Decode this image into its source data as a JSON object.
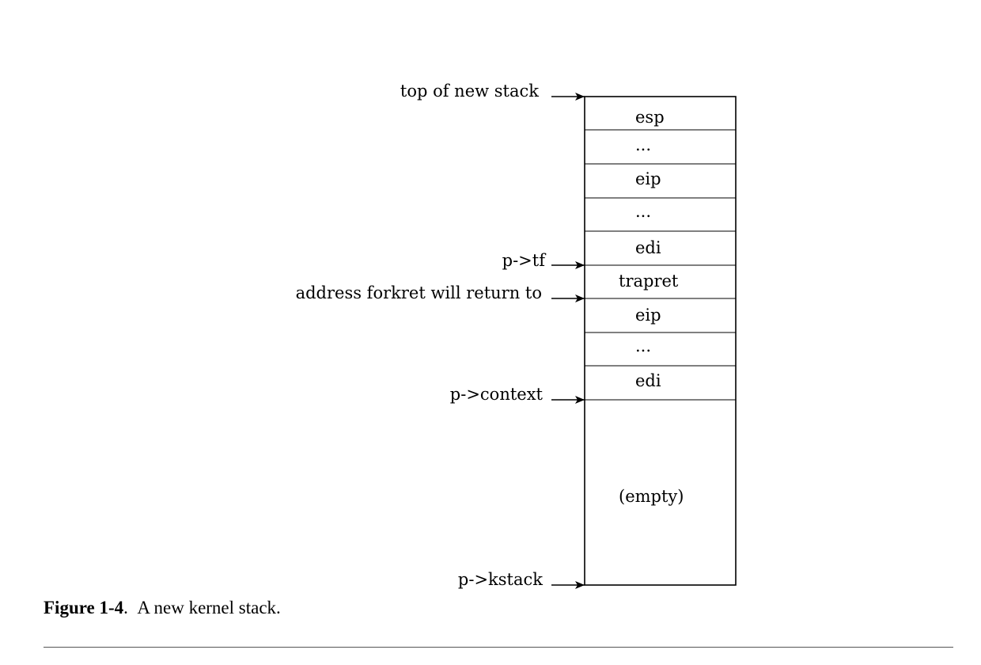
{
  "figure": {
    "label": "Figure 1-4",
    "caption": "A new kernel stack."
  },
  "stack": {
    "cells": [
      "esp",
      "...",
      "eip",
      "...",
      "edi",
      "trapret",
      "eip",
      "...",
      "edi"
    ],
    "empty_label": "(empty)"
  },
  "pointers": [
    "top of new stack",
    "p->tf",
    "address forkret will return to",
    "p->context",
    "p->kstack"
  ]
}
